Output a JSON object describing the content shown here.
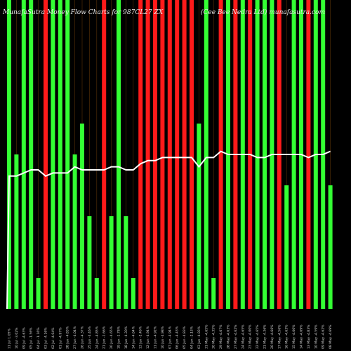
{
  "header": {
    "title_left": "MunafaSutra Money Flow Charts for 987CL27 ZX",
    "title_right": "(Cee Bee Nedra Ltd) munafasutra.com"
  },
  "chart_data": {
    "type": "bar",
    "title": "MunafaSutra Money Flow Charts for 987CL27 ZX",
    "subtitle": "(Cee Bee Nedra Ltd) munafasutra.com",
    "categories": [
      "Thu 11 Jul 2024",
      "Wed 10 Jul 2024",
      "Tue 09 Jul 2024",
      "Fri 05 Jul 2024",
      "Thu 04 Jul 2024",
      "Wed 03 Jul 2024",
      "Tue 02 Jul 2024",
      "Mon 01 Jul 2024",
      "Fri 28 Jun 2024",
      "Thu 27 Jun 2024",
      "Wed 26 Jun 2024",
      "Tue 25 Jun 2024",
      "Mon 24 Jun 2024",
      "Fri 21 Jun 2024",
      "Thu 20 Jun 2024",
      "Wed 19 Jun 2024",
      "Tue 18 Jun 2024",
      "Fri 14 Jun 2024",
      "Thu 13 Jun 2024",
      "Wed 12 Jun 2024",
      "Tue 11 Jun 2024",
      "Mon 10 Jun 2024",
      "Fri 07 Jun 2024",
      "Thu 06 Jun 2024",
      "Wed 05 Jun 2024",
      "Tue 04 Jun 2024",
      "Mon 03 Jun 2024",
      "Fri 31 May 2024",
      "Thu 30 May 2024",
      "Wed 29 May 2024",
      "Tue 28 May 2024",
      "Mon 27 May 2024",
      "Fri 24 May 2024",
      "Thu 23 May 2024",
      "Wed 22 May 2024",
      "Tue 21 May 2024",
      "Mon 20 May 2024",
      "Fri 17 May 2024",
      "Thu 16 May 2024",
      "Wed 15 May 2024",
      "Tue 14 May 2024",
      "Mon 13 May 2024",
      "Fri 10 May 2024",
      "Thu 09 May 2024",
      "Wed 08 May 2024"
    ],
    "x_labels": [
      "11 Jul 1.05%",
      "10 Jul -3.02%",
      "09 Jul -4.63%",
      "05 Jul -1.56%",
      "04 Jul -1.16%",
      "03 Jul -4.16%",
      "02 Jul -4.04%",
      "01 Jul -4.97%",
      "28 Jun -4.83%",
      "27 Jun -4.04%",
      "26 Jun -4.37%",
      "25 Jun -4.46%",
      "24 Jun -4.85%",
      "21 Jun -1.66%",
      "20 Jun -4.65%",
      "19 Jun -1.78%",
      "18 Jun -4.30%",
      "14 Jun -4.64%",
      "13 Jun -2.46%",
      "12 Jun -4.94%",
      "11 Jun -4.92%",
      "10 Jun -4.98%",
      "07 Jun -4.94%",
      "06 Jun -4.43%",
      "05 Jun -4.83%",
      "04 Jun -2.13%",
      "03 Jun -4.93%",
      "31 May -4.65%",
      "30 May -4.35%",
      "29 May -4.67%",
      "28 May -4.63%",
      "27 May -4.62%",
      "24 May -4.65%",
      "23 May -4.00%",
      "22 May -4.65%",
      "21 May -4.36%",
      "20 May -4.66%",
      "17 May -4.56%",
      "16 May -4.63%",
      "15 May -4.60%",
      "14 May -4.69%",
      "13 May -4.83%",
      "10 May -4.59%",
      "09 May -4.62%",
      "08 May -4.69%"
    ],
    "series": [
      {
        "values": [
          100,
          50,
          100,
          100,
          10,
          100,
          100,
          100,
          100,
          50,
          60,
          30,
          10,
          100,
          30,
          100,
          30,
          10,
          100,
          100,
          100,
          100,
          100,
          100,
          100,
          100,
          60,
          100,
          10,
          100,
          100,
          100,
          100,
          100,
          100,
          100,
          100,
          100,
          40,
          100,
          100,
          100,
          100,
          100,
          40
        ],
        "colors": [
          "green",
          "green",
          "green",
          "green",
          "green",
          "red",
          "green",
          "green",
          "green",
          "green",
          "green",
          "green",
          "green",
          "red",
          "green",
          "green",
          "green",
          "green",
          "red",
          "red",
          "red",
          "red",
          "red",
          "red",
          "red",
          "red",
          "green",
          "green",
          "green",
          "red",
          "green",
          "red",
          "green",
          "red",
          "green",
          "green",
          "green",
          "red",
          "green",
          "green",
          "green",
          "red",
          "green",
          "green",
          "green"
        ]
      },
      {
        "values": [
          43,
          43,
          44,
          45,
          45,
          43,
          44,
          44,
          44,
          46,
          45,
          45,
          45,
          45,
          46,
          46,
          45,
          45,
          47,
          48,
          48,
          49,
          49,
          49,
          49,
          49,
          46,
          49,
          49,
          51,
          50,
          50,
          50,
          50,
          49,
          49,
          50,
          50,
          50,
          50,
          50,
          49,
          50,
          50,
          51
        ]
      }
    ],
    "ylim": [
      0,
      100
    ],
    "grid": false,
    "legend": "none"
  }
}
